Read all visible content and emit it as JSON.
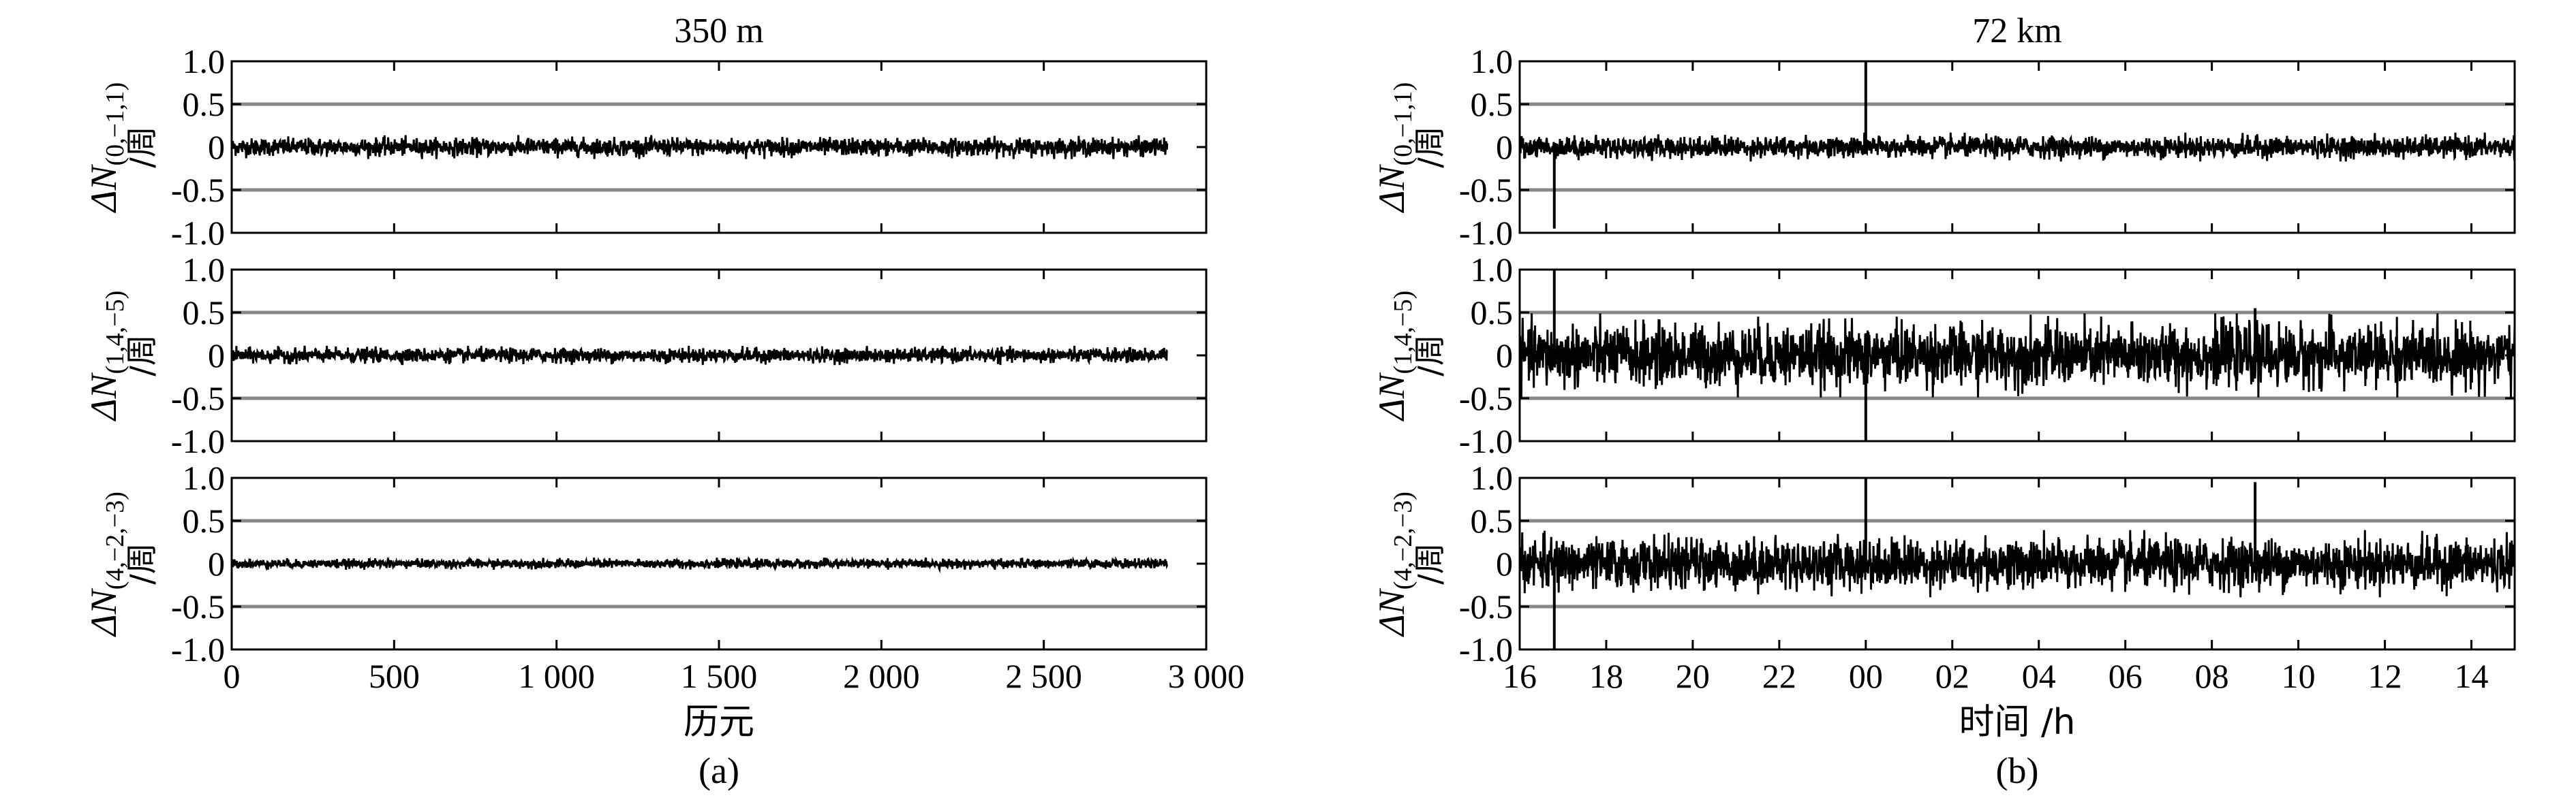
{
  "chart_data": [
    {
      "type": "line",
      "title": "350 m",
      "caption": "(a)",
      "xlabel": "历元",
      "xlim": [
        0,
        3000
      ],
      "x_ticks": [
        0,
        500,
        1000,
        1500,
        2000,
        2500,
        3000
      ],
      "x_tick_labels": [
        "0",
        "500",
        "1 000",
        "1 500",
        "2 000",
        "2 500",
        "3 000"
      ],
      "x_data_range": [
        0,
        2880
      ],
      "ylim": [
        -1.0,
        1.0
      ],
      "y_ticks": [
        1.0,
        0.5,
        0,
        -0.5,
        -1.0
      ],
      "y_tick_labels": [
        "1.0",
        "0.5",
        "0",
        "-0.5",
        "-1.0"
      ],
      "reference_lines": [
        0.5,
        -0.5
      ],
      "grid": false,
      "series": [
        {
          "ylabel_symbol": "ΔN",
          "ylabel_subscript": "(0,−1,1)",
          "ylabel_unit": "/周",
          "noise_amplitude": 0.1,
          "spikes": []
        },
        {
          "ylabel_symbol": "ΔN",
          "ylabel_subscript": "(1,4,−5)",
          "ylabel_unit": "/周",
          "noise_amplitude": 0.08,
          "spikes": []
        },
        {
          "ylabel_symbol": "ΔN",
          "ylabel_subscript": "(4,−2,−3)",
          "ylabel_unit": "/周",
          "noise_amplitude": 0.05,
          "spikes": []
        }
      ]
    },
    {
      "type": "line",
      "title": "72 km",
      "caption": "(b)",
      "xlabel": "时间 /h",
      "xlim": [
        0,
        23
      ],
      "x_ticks": [
        0,
        2,
        4,
        6,
        8,
        10,
        12,
        14,
        16,
        18,
        20,
        22
      ],
      "x_tick_labels": [
        "16",
        "18",
        "20",
        "22",
        "00",
        "02",
        "04",
        "06",
        "08",
        "10",
        "12",
        "14"
      ],
      "x_data_range": [
        0,
        23
      ],
      "ylim": [
        -1.0,
        1.0
      ],
      "y_ticks": [
        1.0,
        0.5,
        0,
        -0.5,
        -1.0
      ],
      "y_tick_labels": [
        "1.0",
        "0.5",
        "0",
        "-0.5",
        "-1.0"
      ],
      "reference_lines": [
        0.5,
        -0.5
      ],
      "grid": false,
      "series": [
        {
          "ylabel_symbol": "ΔN",
          "ylabel_subscript": "(0,−1,1)",
          "ylabel_unit": "/周",
          "noise_amplitude": 0.12,
          "spikes": [
            [
              0.8,
              -0.95
            ],
            [
              8.0,
              1.0
            ]
          ]
        },
        {
          "ylabel_symbol": "ΔN",
          "ylabel_subscript": "(1,4,−5)",
          "ylabel_unit": "/周",
          "noise_amplitude": 0.35,
          "spikes": [
            [
              0.8,
              1.0
            ],
            [
              8.0,
              -1.0
            ],
            [
              17.0,
              0.55
            ]
          ]
        },
        {
          "ylabel_symbol": "ΔN",
          "ylabel_subscript": "(4,−2,−3)",
          "ylabel_unit": "/周",
          "noise_amplitude": 0.28,
          "spikes": [
            [
              0.8,
              -1.0
            ],
            [
              8.0,
              1.0
            ],
            [
              17.0,
              0.95
            ]
          ]
        }
      ]
    }
  ]
}
